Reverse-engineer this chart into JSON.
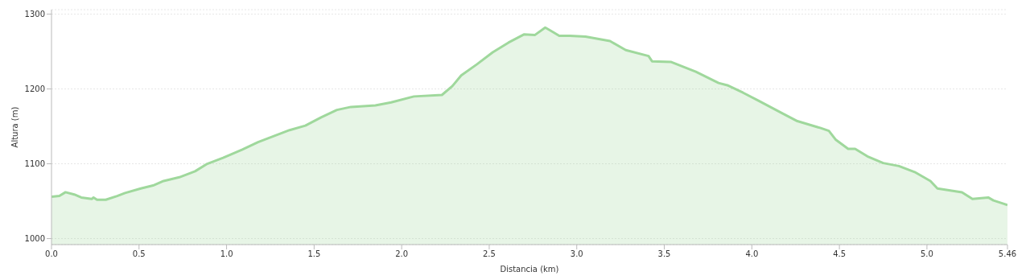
{
  "chart_data": {
    "type": "area",
    "xlabel": "Distancia   (km)",
    "ylabel": "Altura (m)",
    "x": [
      0,
      0.045,
      0.08,
      0.13,
      0.17,
      0.23,
      0.24,
      0.26,
      0.31,
      0.375,
      0.42,
      0.51,
      0.58,
      0.64,
      0.73,
      0.82,
      0.89,
      0.98,
      1.09,
      1.18,
      1.27,
      1.36,
      1.45,
      1.54,
      1.63,
      1.71,
      1.85,
      1.94,
      2.07,
      2.23,
      2.29,
      2.34,
      2.43,
      2.52,
      2.61,
      2.7,
      2.76,
      2.82,
      2.85,
      2.9,
      2.96,
      3.05,
      3.19,
      3.28,
      3.41,
      3.43,
      3.54,
      3.68,
      3.81,
      3.86,
      3.95,
      4.04,
      4.17,
      4.26,
      4.39,
      4.44,
      4.48,
      4.55,
      4.59,
      4.66,
      4.75,
      4.84,
      4.93,
      5.02,
      5.06,
      5.2,
      5.26,
      5.35,
      5.38,
      5.46
    ],
    "series": [
      {
        "color": "#9fd89c",
        "values": [
          1056,
          1057,
          1062,
          1059,
          1055,
          1053,
          1055,
          1052,
          1052,
          1057,
          1061,
          1067,
          1071,
          1077,
          1082,
          1090,
          1100,
          1108,
          1119,
          1129,
          1137,
          1145,
          1151,
          1162,
          1172,
          1176,
          1178,
          1182,
          1190,
          1192,
          1204,
          1218,
          1233,
          1249,
          1262,
          1273,
          1272,
          1282,
          1278,
          1271,
          1271,
          1270,
          1264,
          1252,
          1244,
          1237,
          1236,
          1223,
          1208,
          1205,
          1195,
          1184,
          1168,
          1157,
          1148,
          1144,
          1132,
          1120,
          1120,
          1110,
          1101,
          1097,
          1089,
          1077,
          1067,
          1062,
          1053,
          1055,
          1051,
          1045
        ]
      }
    ],
    "xlim": [
      0,
      5.46
    ],
    "xticks": [
      {
        "value": 0,
        "label": "0.0"
      },
      0.5,
      {
        "value": 1,
        "label": "1.0"
      },
      1.5,
      {
        "value": 2,
        "label": "2.0"
      },
      2.5,
      {
        "value": 3,
        "label": "3.0"
      },
      3.5,
      {
        "value": 4,
        "label": "4.0"
      },
      4.5,
      {
        "value": 5,
        "label": "5.0"
      },
      5.46
    ],
    "ylim": [
      992,
      1306
    ],
    "yticks": [
      1000,
      1100,
      1200,
      1300
    ],
    "grid": "y",
    "legend": false
  }
}
